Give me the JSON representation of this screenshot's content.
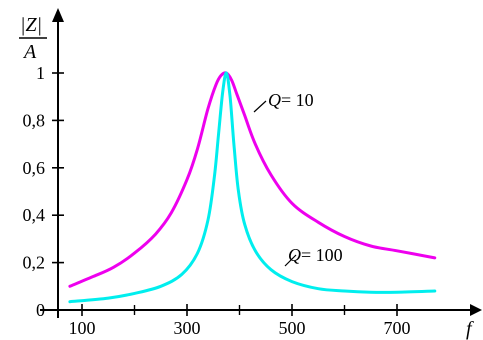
{
  "chart_data": {
    "type": "line",
    "title": "",
    "xlabel": "f",
    "ylabel": {
      "numerator": "|Z|",
      "denominator": "A"
    },
    "xlim": [
      60,
      790
    ],
    "ylim": [
      0,
      1.1
    ],
    "x_ticks": [
      100,
      300,
      500,
      700
    ],
    "x_minor_ticks": [
      200,
      400,
      600
    ],
    "y_ticks": [
      {
        "value": 0,
        "label": "0"
      },
      {
        "value": 0.2,
        "label": "0,2"
      },
      {
        "value": 0.4,
        "label": "0,4"
      },
      {
        "value": 0.6,
        "label": "0,6"
      },
      {
        "value": 0.8,
        "label": "0,8"
      },
      {
        "value": 1,
        "label": "1"
      }
    ],
    "grid": false,
    "resonance_frequency": 375,
    "series": [
      {
        "name": "Q = 10",
        "color": "#ee00ee",
        "x": [
          77,
          120,
          160,
          200,
          240,
          270,
          300,
          320,
          340,
          355,
          365,
          375,
          385,
          395,
          410,
          430,
          460,
          500,
          550,
          600,
          650,
          700,
          772
        ],
        "y": [
          0.1,
          0.14,
          0.18,
          0.24,
          0.32,
          0.41,
          0.55,
          0.68,
          0.85,
          0.95,
          0.99,
          1.0,
          0.97,
          0.91,
          0.82,
          0.7,
          0.57,
          0.45,
          0.37,
          0.31,
          0.27,
          0.25,
          0.22
        ]
      },
      {
        "name": "Q = 100",
        "color": "#00eeee",
        "x": [
          77,
          150,
          200,
          250,
          290,
          320,
          340,
          352,
          360,
          368,
          375,
          382,
          390,
          398,
          410,
          430,
          460,
          500,
          550,
          600,
          650,
          700,
          772
        ],
        "y": [
          0.035,
          0.05,
          0.07,
          0.1,
          0.15,
          0.24,
          0.38,
          0.56,
          0.74,
          0.92,
          1.0,
          0.9,
          0.68,
          0.5,
          0.36,
          0.25,
          0.17,
          0.12,
          0.09,
          0.08,
          0.075,
          0.075,
          0.08
        ]
      }
    ],
    "annotations": [
      {
        "q_symbol": "Q",
        "value_text": "= 10",
        "series": "Q = 10"
      },
      {
        "q_symbol": "Q",
        "value_text": "= 100",
        "series": "Q = 100"
      }
    ]
  }
}
